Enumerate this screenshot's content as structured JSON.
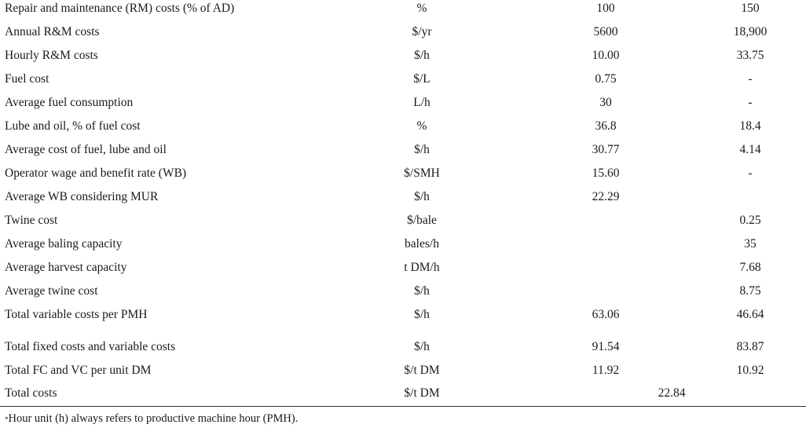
{
  "rows": [
    {
      "param": "Repair and maintenance (RM) costs (% of AD)",
      "unit": "%",
      "v1": "100",
      "v2": "150"
    },
    {
      "param": "Annual R&M costs",
      "unit": "$/yr",
      "v1": "5600",
      "v2": "18,900"
    },
    {
      "param": "Hourly R&M costs",
      "unit": "$/h",
      "v1": "10.00",
      "v2": "33.75"
    },
    {
      "param": "Fuel cost",
      "unit": "$/L",
      "v1": "0.75",
      "v2": "-"
    },
    {
      "param": "Average fuel consumption",
      "unit": "L/h",
      "v1": "30",
      "v2": "-"
    },
    {
      "param": "Lube and oil, % of fuel cost",
      "unit": "%",
      "v1": "36.8",
      "v2": "18.4"
    },
    {
      "param": "Average cost of fuel, lube and oil",
      "unit": "$/h",
      "v1": "30.77",
      "v2": "4.14"
    },
    {
      "param": "Operator wage and benefit rate (WB)",
      "unit": "$/SMH",
      "v1": "15.60",
      "v2": "-"
    },
    {
      "param": "Average WB considering MUR",
      "unit": "$/h",
      "v1": "22.29",
      "v2": ""
    },
    {
      "param": "Twine cost",
      "unit": "$/bale",
      "v1": "",
      "v2": "0.25"
    },
    {
      "param": "Average baling capacity",
      "unit": "bales/h",
      "v1": "",
      "v2": "35"
    },
    {
      "param": "Average harvest capacity",
      "unit": "t DM/h",
      "v1": "",
      "v2": "7.68"
    },
    {
      "param": "Average twine cost",
      "unit": "$/h",
      "v1": "",
      "v2": "8.75"
    },
    {
      "param": "Total variable costs per PMH",
      "unit": "$/h",
      "v1": "63.06",
      "v2": "46.64"
    },
    {
      "param": "Total fixed costs and variable costs",
      "unit": "$/h",
      "v1": "91.54",
      "v2": "83.87"
    },
    {
      "param": "Total FC and VC per unit DM",
      "unit": "$/t DM",
      "v1": "11.92",
      "v2": "10.92"
    },
    {
      "param": "Total costs",
      "unit": "$/t DM",
      "v1": "22.84",
      "v2": ""
    }
  ],
  "footnote": {
    "marker": "*",
    "text": "Hour unit (h) always refers to productive machine hour (PMH)."
  }
}
